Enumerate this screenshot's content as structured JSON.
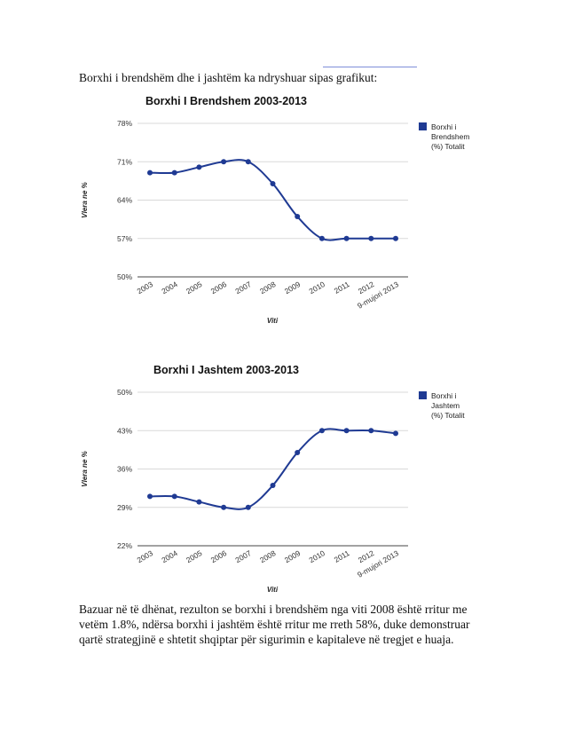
{
  "intro_text": "Borxhi i brendshëm dhe i jashtëm ka ndryshuar sipas grafikut:",
  "chart_data": [
    {
      "type": "line",
      "title": "Borxhi I Brendshem 2003-2013",
      "xlabel": "Viti",
      "ylabel": "Vlera ne %",
      "categories": [
        "2003",
        "2004",
        "2005",
        "2006",
        "2007",
        "2008",
        "2009",
        "2010",
        "2011",
        "2012",
        "9-mujori 2013"
      ],
      "series": [
        {
          "name": "Borxhi i Brendshem (%) Totalit",
          "values": [
            69,
            69,
            70,
            71,
            71,
            67,
            61,
            57,
            57,
            57,
            57
          ]
        }
      ],
      "ylim": [
        50,
        78
      ],
      "yticks": [
        "50%",
        "57%",
        "64%",
        "71%",
        "78%"
      ],
      "ytick_values": [
        50,
        57,
        64,
        71,
        78
      ],
      "legend_lines": [
        "Borxhi i",
        "Brendshem",
        "(%) Totalit"
      ],
      "legend": "right",
      "grid": true,
      "color": "#1f3a93"
    },
    {
      "type": "line",
      "title": "Borxhi I Jashtem 2003-2013",
      "xlabel": "Viti",
      "ylabel": "Vlera ne %",
      "categories": [
        "2003",
        "2004",
        "2005",
        "2006",
        "2007",
        "2008",
        "2009",
        "2010",
        "2011",
        "2012",
        "9-mujori 2013"
      ],
      "series": [
        {
          "name": "Borxhi i Jashtem (%) Totalit",
          "values": [
            31,
            31,
            30,
            29,
            29,
            33,
            39,
            43,
            43,
            43,
            42.5
          ]
        }
      ],
      "ylim": [
        22,
        50
      ],
      "yticks": [
        "22%",
        "29%",
        "36%",
        "43%",
        "50%"
      ],
      "ytick_values": [
        22,
        29,
        36,
        43,
        50
      ],
      "legend_lines": [
        "Borxhi i",
        "Jashtem",
        "(%) Totalit"
      ],
      "legend": "right",
      "grid": true,
      "color": "#1f3a93"
    }
  ],
  "conclusion_lines": [
    "Bazuar në të dhënat, rezulton se borxhi i brendshëm nga viti 2008 është rritur me",
    "vetëm 1.8%, ndërsa borxhi i jashtëm është rritur me rreth 58%, duke demonstruar",
    "qartë strategjinë e shtetit shqiptar për sigurimin e kapitaleve në tregjet e huaja."
  ]
}
